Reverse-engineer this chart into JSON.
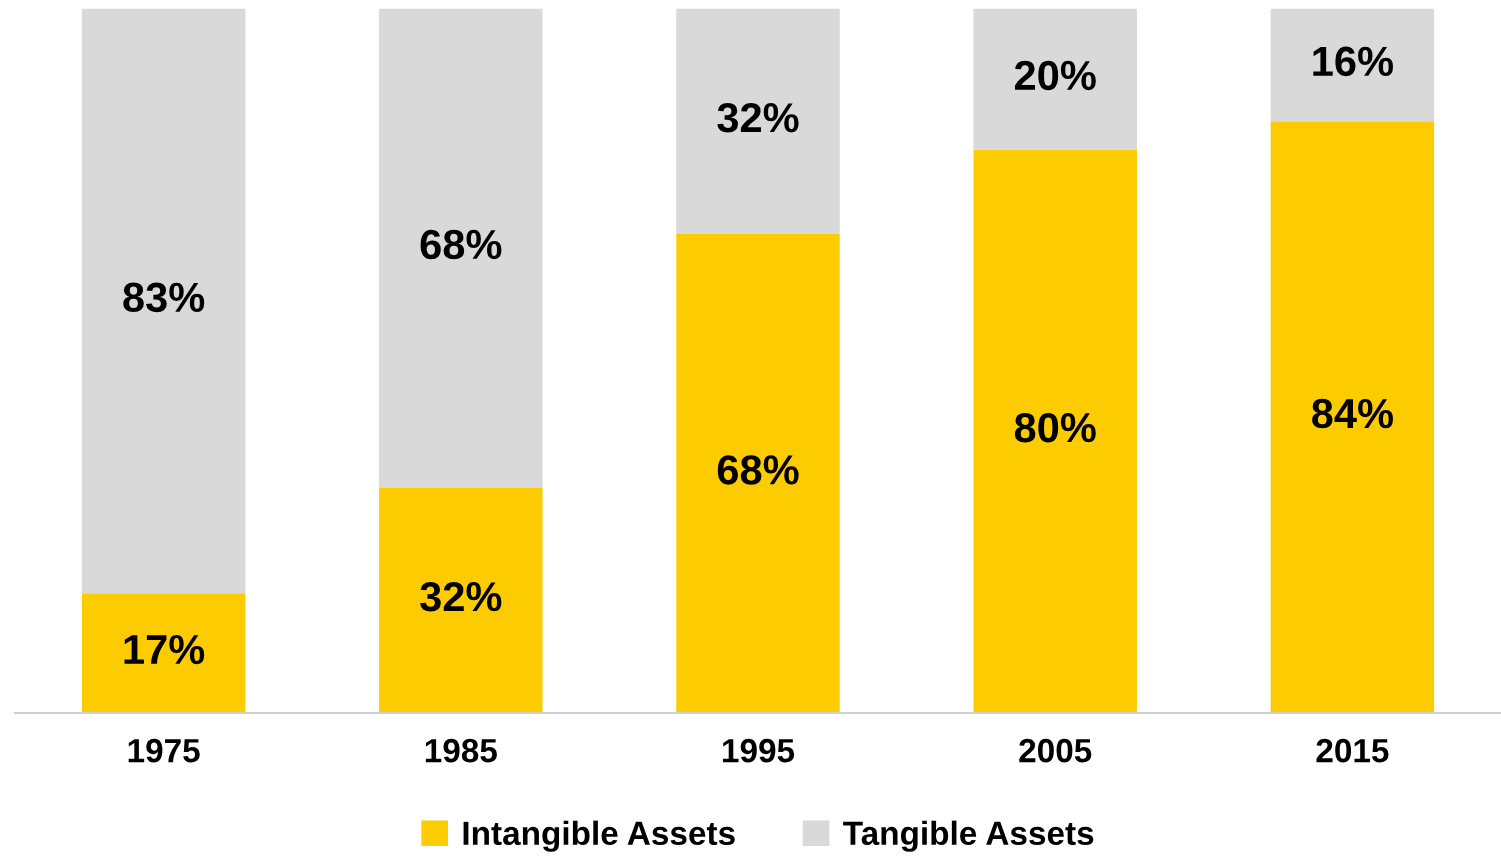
{
  "chart_data": {
    "type": "bar",
    "stacked": true,
    "tick_labels": "x",
    "grid": false,
    "legend": "bottom",
    "categories": [
      "1975",
      "1985",
      "1995",
      "2005",
      "2015"
    ],
    "series": [
      {
        "name": "Intangible Assets",
        "color": "#fccc00",
        "values": [
          17,
          32,
          68,
          80,
          84
        ],
        "value_labels": [
          "17%",
          "32%",
          "68%",
          "80%",
          "84%"
        ]
      },
      {
        "name": "Tangible Assets",
        "color": "#d9d9d9",
        "values": [
          83,
          68,
          32,
          20,
          16
        ],
        "value_labels": [
          "83%",
          "68%",
          "32%",
          "20%",
          "16%"
        ]
      }
    ]
  }
}
